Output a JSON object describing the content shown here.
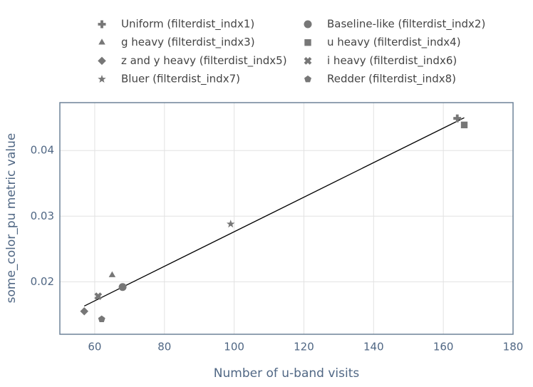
{
  "chart_data": {
    "type": "scatter",
    "x_label": "Number of u-band visits",
    "y_label": "some_color_pu metric value",
    "xlim": [
      50,
      180
    ],
    "xticks": [
      60,
      80,
      100,
      120,
      140,
      160,
      180
    ],
    "ylim": [
      0.012,
      0.0473
    ],
    "yticks": [
      0.02,
      0.03,
      0.04
    ],
    "grid": true,
    "legend": "top",
    "series": [
      {
        "name": "Uniform (filterdist_indx1)",
        "marker": "cross",
        "color": "#777777",
        "x": [
          164
        ],
        "values": [
          0.0449
        ]
      },
      {
        "name": "Baseline-like (filterdist_indx2)",
        "marker": "circle",
        "color": "#777777",
        "x": [
          68
        ],
        "values": [
          0.0192
        ]
      },
      {
        "name": "g heavy (filterdist_indx3)",
        "marker": "triangle",
        "color": "#777777",
        "x": [
          65
        ],
        "values": [
          0.021
        ]
      },
      {
        "name": "u heavy (filterdist_indx4)",
        "marker": "square",
        "color": "#777777",
        "x": [
          166
        ],
        "values": [
          0.0439
        ]
      },
      {
        "name": "z and y heavy (filterdist_indx5)",
        "marker": "diamond",
        "color": "#777777",
        "x": [
          57
        ],
        "values": [
          0.0155
        ]
      },
      {
        "name": "i heavy (filterdist_indx6)",
        "marker": "x",
        "color": "#777777",
        "x": [
          61
        ],
        "values": [
          0.0178
        ]
      },
      {
        "name": "Bluer (filterdist_indx7)",
        "marker": "star",
        "color": "#777777",
        "x": [
          99
        ],
        "values": [
          0.0288
        ]
      },
      {
        "name": "Redder (filterdist_indx8)",
        "marker": "pentagon",
        "color": "#777777",
        "x": [
          62
        ],
        "values": [
          0.0143
        ]
      }
    ],
    "trend_line": {
      "color": "#000000",
      "x": [
        57,
        166
      ],
      "values": [
        0.0163,
        0.045
      ]
    }
  }
}
